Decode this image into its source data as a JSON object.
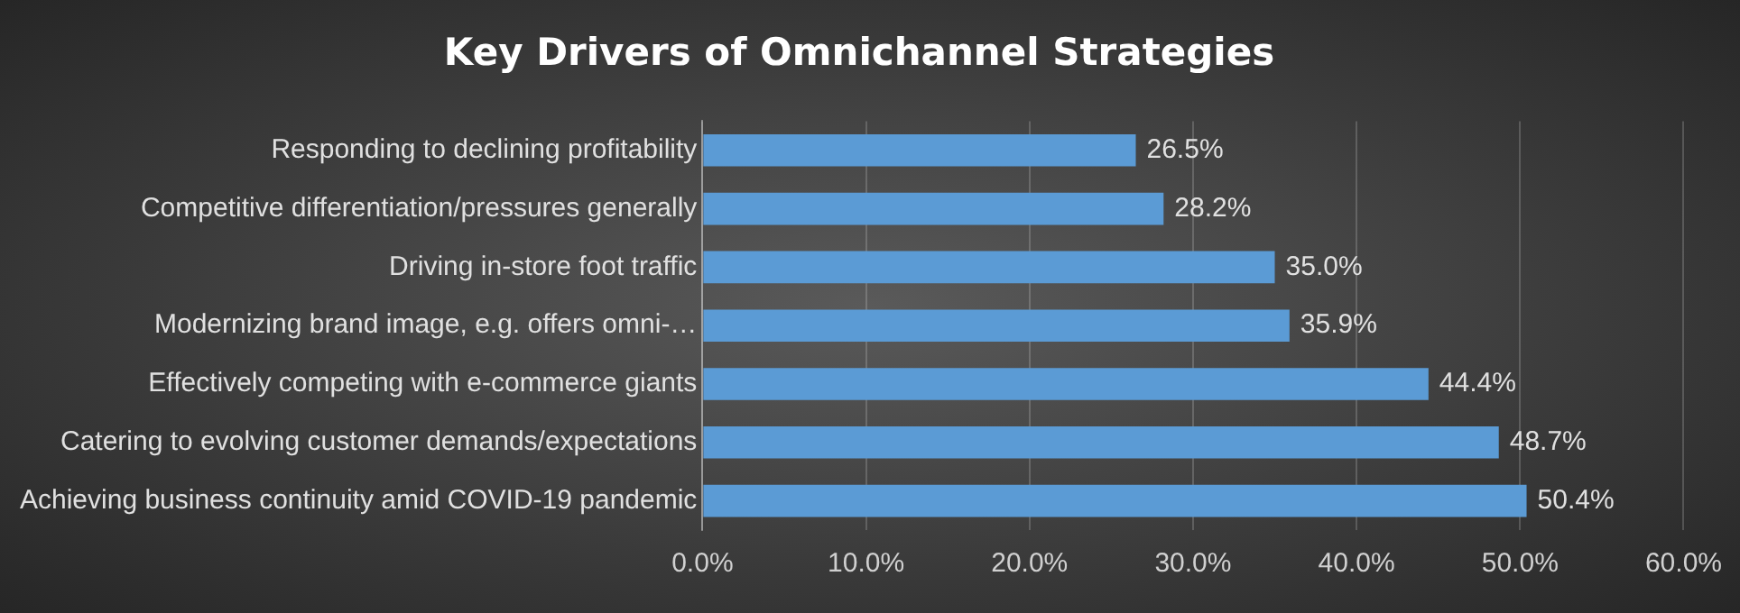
{
  "chart_data": {
    "type": "bar",
    "orientation": "horizontal",
    "title": "Key Drivers of Omnichannel Strategies",
    "categories": [
      "Responding to declining profitability",
      "Competitive differentiation/pressures generally",
      "Driving in-store foot traffic",
      "Modernizing brand image, e.g. offers omni-…",
      "Effectively competing with e-commerce giants",
      "Catering to evolving customer demands/expectations",
      "Achieving business continuity amid COVID-19 pandemic"
    ],
    "values": [
      26.5,
      28.2,
      35.0,
      35.9,
      44.4,
      48.7,
      50.4
    ],
    "value_labels": [
      "26.5%",
      "28.2%",
      "35.0%",
      "35.9%",
      "44.4%",
      "48.7%",
      "50.4%"
    ],
    "color": "#5b9bd5",
    "xlim": [
      0,
      60
    ],
    "xticks": [
      {
        "value": 0,
        "label": "0.0%"
      },
      {
        "value": 10,
        "label": "10.0%"
      },
      {
        "value": 20,
        "label": "20.0%"
      },
      {
        "value": 30,
        "label": "30.0%"
      },
      {
        "value": 40,
        "label": "40.0%"
      },
      {
        "value": 50,
        "label": "50.0%"
      },
      {
        "value": 60,
        "label": "60.0%"
      }
    ],
    "grid": "x",
    "legend": false
  }
}
